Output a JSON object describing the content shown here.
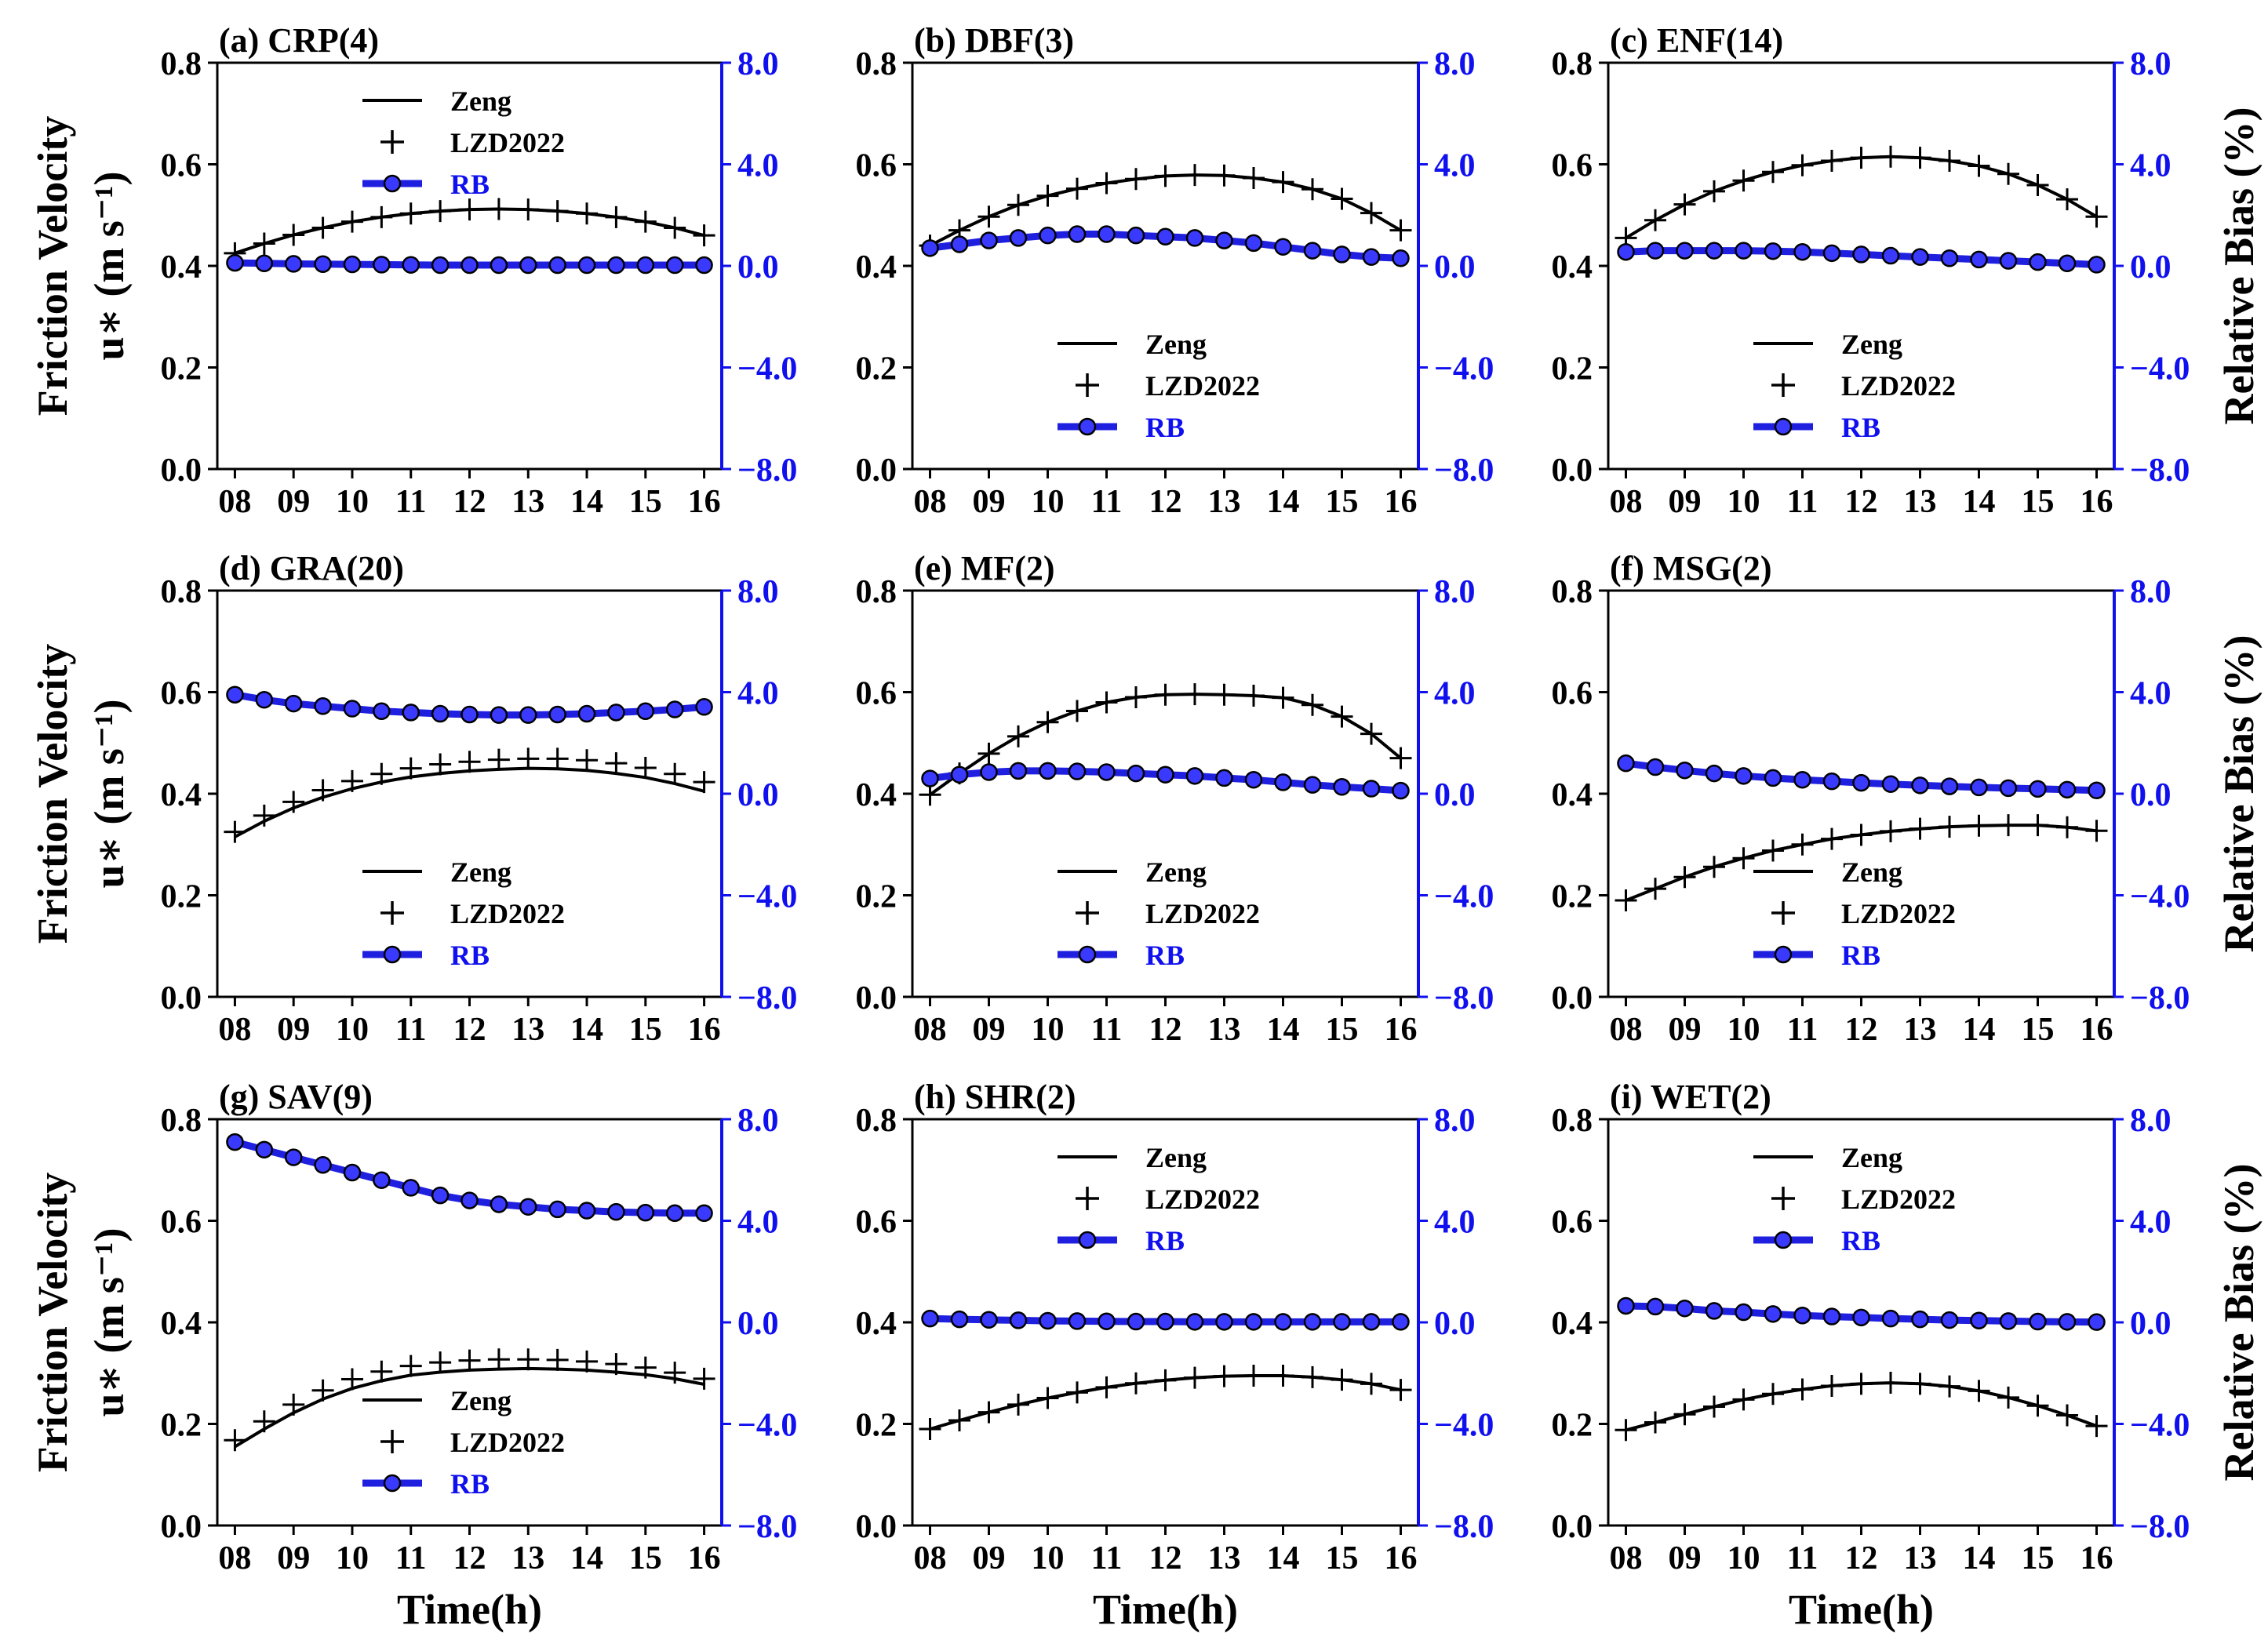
{
  "chart_data": [
    {
      "id": "a",
      "type": "line",
      "title": "(a) CRP(4)",
      "ylim": [
        0,
        0.8
      ],
      "y2lim": [
        -8,
        8
      ],
      "legend_position": "top-center",
      "zeng": [
        0.425,
        0.444,
        0.461,
        0.475,
        0.487,
        0.496,
        0.503,
        0.508,
        0.511,
        0.512,
        0.511,
        0.508,
        0.503,
        0.496,
        0.487,
        0.475,
        0.46
      ],
      "lzd2022": [
        0.425,
        0.444,
        0.461,
        0.475,
        0.487,
        0.496,
        0.503,
        0.508,
        0.511,
        0.512,
        0.511,
        0.508,
        0.503,
        0.496,
        0.487,
        0.475,
        0.46
      ],
      "rb": [
        0.12,
        0.1,
        0.08,
        0.07,
        0.06,
        0.05,
        0.04,
        0.03,
        0.03,
        0.03,
        0.03,
        0.03,
        0.03,
        0.03,
        0.03,
        0.03,
        0.03
      ]
    },
    {
      "id": "b",
      "type": "line",
      "title": "(b) DBF(3)",
      "ylim": [
        0,
        0.8
      ],
      "y2lim": [
        -8,
        8
      ],
      "legend_position": "lower-center",
      "zeng": [
        0.44,
        0.47,
        0.497,
        0.52,
        0.538,
        0.552,
        0.563,
        0.571,
        0.577,
        0.579,
        0.578,
        0.573,
        0.565,
        0.551,
        0.532,
        0.504,
        0.47
      ],
      "lzd2022": [
        0.44,
        0.47,
        0.497,
        0.52,
        0.538,
        0.552,
        0.563,
        0.571,
        0.577,
        0.579,
        0.578,
        0.573,
        0.565,
        0.551,
        0.532,
        0.504,
        0.47
      ],
      "rb": [
        0.7,
        0.85,
        1.0,
        1.1,
        1.2,
        1.25,
        1.25,
        1.2,
        1.15,
        1.1,
        1.0,
        0.9,
        0.75,
        0.6,
        0.45,
        0.35,
        0.3
      ]
    },
    {
      "id": "c",
      "type": "line",
      "title": "(c) ENF(14)",
      "ylim": [
        0,
        0.8
      ],
      "y2lim": [
        -8,
        8
      ],
      "legend_position": "lower-center",
      "zeng": [
        0.455,
        0.49,
        0.521,
        0.547,
        0.568,
        0.585,
        0.598,
        0.607,
        0.613,
        0.615,
        0.613,
        0.607,
        0.597,
        0.581,
        0.559,
        0.531,
        0.497
      ],
      "lzd2022": [
        0.455,
        0.49,
        0.521,
        0.547,
        0.568,
        0.585,
        0.598,
        0.607,
        0.613,
        0.615,
        0.613,
        0.607,
        0.597,
        0.581,
        0.559,
        0.531,
        0.497
      ],
      "rb": [
        0.55,
        0.6,
        0.6,
        0.6,
        0.6,
        0.58,
        0.55,
        0.5,
        0.45,
        0.4,
        0.35,
        0.3,
        0.25,
        0.2,
        0.15,
        0.1,
        0.05
      ]
    },
    {
      "id": "d",
      "type": "line",
      "title": "(d) GRA(20)",
      "ylim": [
        0,
        0.8
      ],
      "y2lim": [
        -8,
        8
      ],
      "legend_position": "lower-center",
      "zeng": [
        0.315,
        0.346,
        0.372,
        0.393,
        0.41,
        0.423,
        0.433,
        0.44,
        0.445,
        0.448,
        0.45,
        0.449,
        0.446,
        0.44,
        0.432,
        0.42,
        0.405
      ],
      "lzd2022": [
        0.325,
        0.357,
        0.384,
        0.407,
        0.425,
        0.439,
        0.45,
        0.458,
        0.463,
        0.467,
        0.469,
        0.469,
        0.466,
        0.46,
        0.451,
        0.439,
        0.423
      ],
      "rb": [
        3.9,
        3.7,
        3.55,
        3.45,
        3.35,
        3.25,
        3.2,
        3.15,
        3.12,
        3.1,
        3.1,
        3.12,
        3.15,
        3.2,
        3.25,
        3.32,
        3.42
      ]
    },
    {
      "id": "e",
      "type": "line",
      "title": "(e) MF(2)",
      "ylim": [
        0,
        0.8
      ],
      "y2lim": [
        -8,
        8
      ],
      "legend_position": "lower-center",
      "zeng": [
        0.398,
        0.44,
        0.479,
        0.513,
        0.541,
        0.563,
        0.58,
        0.59,
        0.595,
        0.596,
        0.595,
        0.593,
        0.589,
        0.575,
        0.552,
        0.518,
        0.47
      ],
      "lzd2022": [
        0.398,
        0.44,
        0.479,
        0.513,
        0.541,
        0.563,
        0.58,
        0.59,
        0.595,
        0.596,
        0.595,
        0.593,
        0.589,
        0.575,
        0.552,
        0.518,
        0.47
      ],
      "rb": [
        0.6,
        0.75,
        0.85,
        0.9,
        0.9,
        0.88,
        0.85,
        0.8,
        0.75,
        0.7,
        0.62,
        0.55,
        0.45,
        0.35,
        0.27,
        0.2,
        0.12
      ]
    },
    {
      "id": "f",
      "type": "line",
      "title": "(f) MSG(2)",
      "ylim": [
        0,
        0.8
      ],
      "y2lim": [
        -8,
        8
      ],
      "legend_position": "lower-center",
      "zeng": [
        0.19,
        0.213,
        0.236,
        0.256,
        0.273,
        0.288,
        0.3,
        0.311,
        0.319,
        0.326,
        0.331,
        0.335,
        0.337,
        0.338,
        0.338,
        0.334,
        0.327
      ],
      "lzd2022": [
        0.19,
        0.213,
        0.236,
        0.256,
        0.273,
        0.288,
        0.3,
        0.311,
        0.319,
        0.326,
        0.331,
        0.335,
        0.337,
        0.338,
        0.338,
        0.334,
        0.327
      ],
      "rb": [
        1.2,
        1.05,
        0.92,
        0.8,
        0.7,
        0.62,
        0.55,
        0.49,
        0.43,
        0.38,
        0.33,
        0.29,
        0.25,
        0.22,
        0.19,
        0.16,
        0.13
      ]
    },
    {
      "id": "g",
      "type": "line",
      "title": "(g) SAV(9)",
      "ylim": [
        0,
        0.8
      ],
      "y2lim": [
        -8,
        8
      ],
      "legend_position": "lower-center",
      "zeng": [
        0.155,
        0.19,
        0.222,
        0.249,
        0.27,
        0.285,
        0.296,
        0.302,
        0.306,
        0.308,
        0.309,
        0.308,
        0.306,
        0.302,
        0.297,
        0.289,
        0.278
      ],
      "lzd2022": [
        0.168,
        0.205,
        0.238,
        0.266,
        0.288,
        0.303,
        0.314,
        0.321,
        0.325,
        0.327,
        0.327,
        0.326,
        0.323,
        0.318,
        0.311,
        0.301,
        0.289
      ],
      "rb": [
        7.1,
        6.8,
        6.5,
        6.2,
        5.9,
        5.6,
        5.3,
        5.0,
        4.8,
        4.65,
        4.55,
        4.45,
        4.4,
        4.35,
        4.32,
        4.3,
        4.3
      ]
    },
    {
      "id": "h",
      "type": "line",
      "title": "(h) SHR(2)",
      "ylim": [
        0,
        0.8
      ],
      "y2lim": [
        -8,
        8
      ],
      "legend_position": "top-center",
      "zeng": [
        0.19,
        0.207,
        0.223,
        0.238,
        0.251,
        0.262,
        0.272,
        0.28,
        0.286,
        0.291,
        0.294,
        0.295,
        0.295,
        0.292,
        0.287,
        0.279,
        0.267
      ],
      "lzd2022": [
        0.19,
        0.207,
        0.223,
        0.238,
        0.251,
        0.262,
        0.272,
        0.28,
        0.286,
        0.291,
        0.294,
        0.295,
        0.295,
        0.292,
        0.287,
        0.279,
        0.267
      ],
      "rb": [
        0.15,
        0.12,
        0.1,
        0.08,
        0.06,
        0.05,
        0.04,
        0.03,
        0.03,
        0.02,
        0.02,
        0.02,
        0.02,
        0.02,
        0.02,
        0.02,
        0.02
      ]
    },
    {
      "id": "i",
      "type": "line",
      "title": "(i) WET(2)",
      "ylim": [
        0,
        0.8
      ],
      "y2lim": [
        -8,
        8
      ],
      "legend_position": "top-center",
      "zeng": [
        0.188,
        0.203,
        0.219,
        0.234,
        0.248,
        0.259,
        0.268,
        0.275,
        0.279,
        0.281,
        0.279,
        0.274,
        0.265,
        0.252,
        0.236,
        0.217,
        0.196
      ],
      "lzd2022": [
        0.188,
        0.203,
        0.219,
        0.234,
        0.248,
        0.259,
        0.268,
        0.275,
        0.279,
        0.281,
        0.279,
        0.274,
        0.265,
        0.252,
        0.236,
        0.217,
        0.196
      ],
      "rb": [
        0.65,
        0.62,
        0.55,
        0.45,
        0.4,
        0.33,
        0.27,
        0.23,
        0.19,
        0.15,
        0.12,
        0.09,
        0.07,
        0.05,
        0.03,
        0.02,
        0.01
      ]
    }
  ],
  "shared": {
    "x": [
      8,
      8.5,
      9,
      9.5,
      10,
      10.5,
      11,
      11.5,
      12,
      12.5,
      13,
      13.5,
      14,
      14.5,
      15,
      15.5,
      16
    ],
    "xlim": [
      7.7,
      16.3
    ],
    "xticks": [
      8,
      9,
      10,
      11,
      12,
      13,
      14,
      15,
      16
    ],
    "xtick_labels": [
      "08",
      "09",
      "10",
      "11",
      "12",
      "13",
      "14",
      "15",
      "16"
    ],
    "yticks": [
      0.0,
      0.2,
      0.4,
      0.6,
      0.8
    ],
    "ytick_labels": [
      "0.0",
      "0.2",
      "0.4",
      "0.6",
      "0.8"
    ],
    "y2ticks": [
      -8,
      -4,
      0,
      4,
      8
    ],
    "y2tick_labels": [
      "−8.0",
      "−4.0",
      "0.0",
      "4.0",
      "8.0"
    ],
    "xlabel": "Time(h)",
    "ylabel_line1": "Friction Velocity",
    "ylabel_line2": "u∗ (m s⁻¹)",
    "y2label": "Relative Bias (%)",
    "legend": [
      "Zeng",
      "LZD2022",
      "RB"
    ],
    "colors": {
      "zeng": "#000000",
      "lzd": "#000000",
      "rb": "#1f1fe0",
      "rb_fill": "#3a3aff",
      "rb_axis": "#1010ee"
    }
  }
}
